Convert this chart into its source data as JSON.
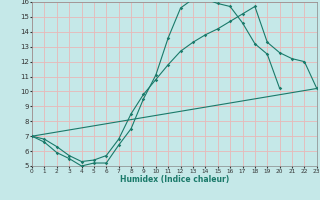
{
  "bg_color": "#c5e8e8",
  "grid_color": "#e8b8b8",
  "line_color": "#1a7a6a",
  "xlabel": "Humidex (Indice chaleur)",
  "xlim": [
    0,
    23
  ],
  "ylim": [
    5,
    16
  ],
  "xticks": [
    0,
    1,
    2,
    3,
    4,
    5,
    6,
    7,
    8,
    9,
    10,
    11,
    12,
    13,
    14,
    15,
    16,
    17,
    18,
    19,
    20,
    21,
    22,
    23
  ],
  "yticks": [
    5,
    6,
    7,
    8,
    9,
    10,
    11,
    12,
    13,
    14,
    15,
    16
  ],
  "curve1_x": [
    0,
    1,
    2,
    3,
    4,
    5,
    6,
    7,
    8,
    9,
    10,
    11,
    12,
    13,
    14,
    15,
    16,
    17,
    18,
    19,
    20
  ],
  "curve1_y": [
    7.0,
    6.6,
    5.9,
    5.5,
    5.0,
    5.2,
    5.2,
    6.4,
    7.5,
    9.5,
    11.1,
    13.6,
    15.6,
    16.2,
    16.2,
    15.9,
    15.7,
    14.6,
    13.2,
    12.5,
    10.2
  ],
  "curve2_x": [
    0,
    1,
    2,
    3,
    4,
    5,
    6,
    7,
    8,
    9,
    10,
    11,
    12,
    13,
    14,
    15,
    16,
    17,
    18,
    19,
    20,
    21,
    22,
    23
  ],
  "curve2_y": [
    7.0,
    6.8,
    6.3,
    5.7,
    5.3,
    5.4,
    5.7,
    6.8,
    8.5,
    9.8,
    10.8,
    11.8,
    12.7,
    13.3,
    13.8,
    14.2,
    14.7,
    15.2,
    15.7,
    13.3,
    12.6,
    12.2,
    12.0,
    10.2
  ],
  "curve3_x": [
    0,
    23
  ],
  "curve3_y": [
    7.0,
    10.2
  ]
}
